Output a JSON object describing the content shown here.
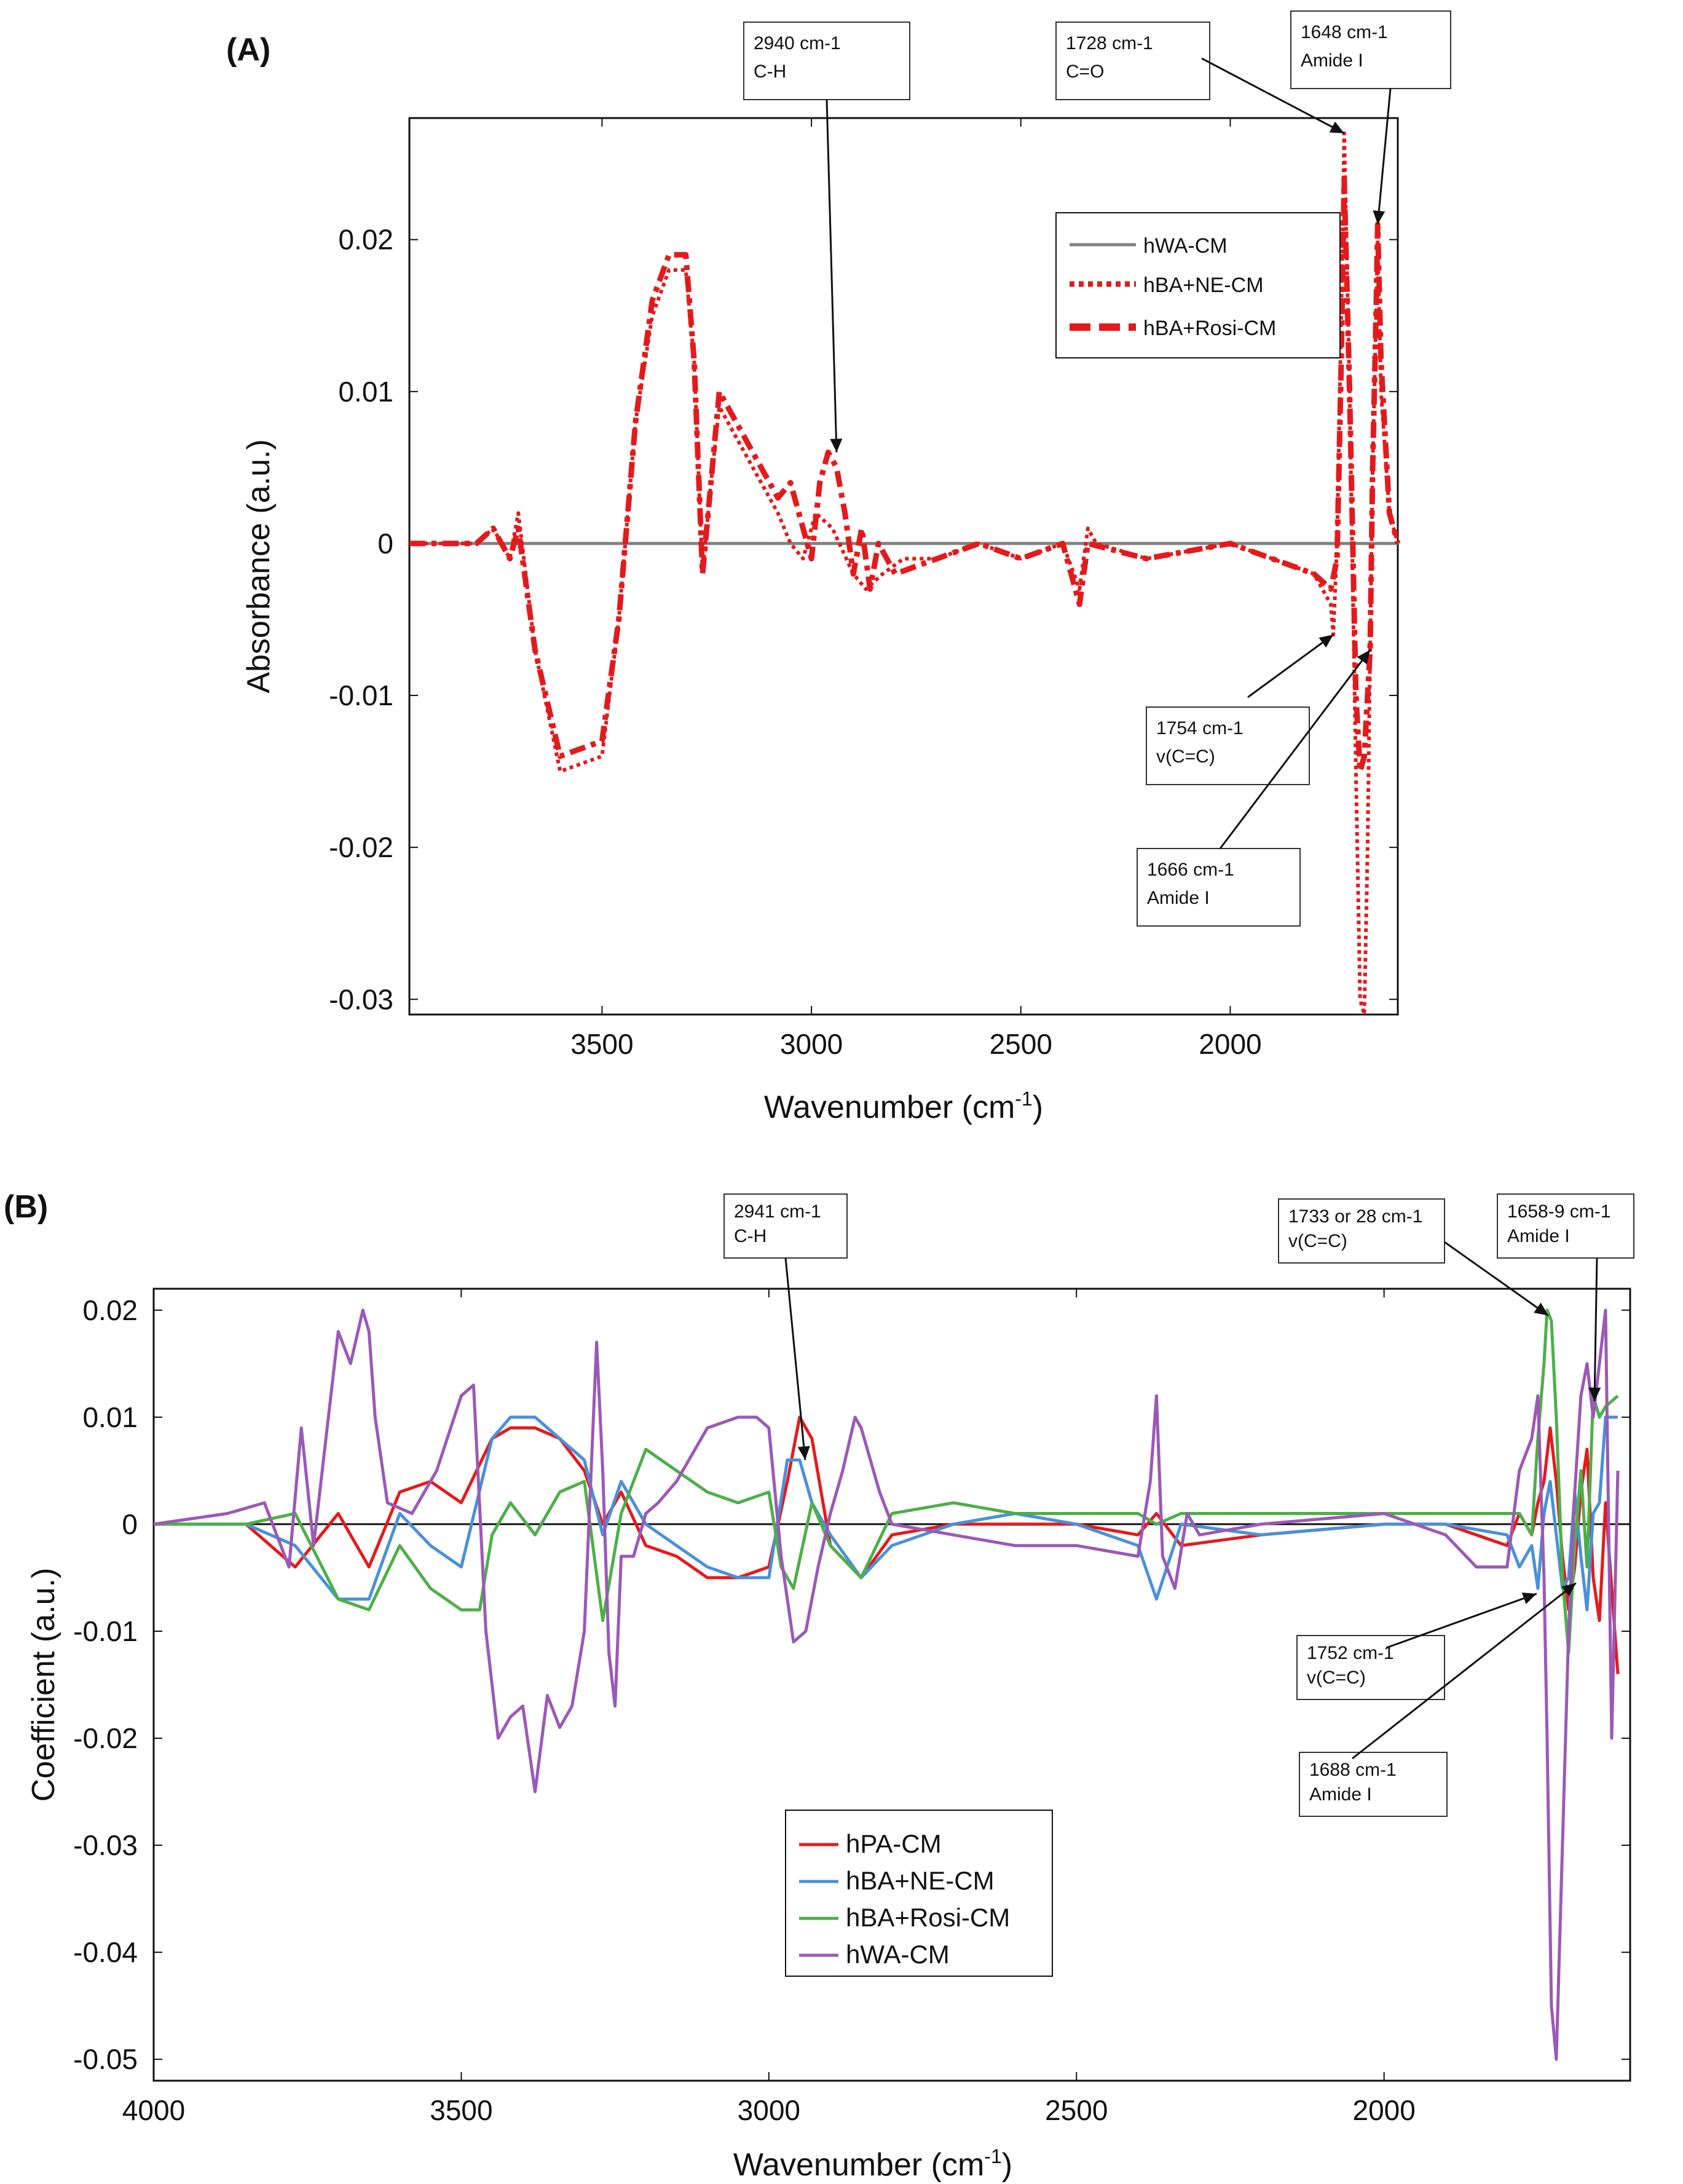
{
  "chart_data": [
    {
      "panel": "(A)",
      "type": "line",
      "xlabel": "Wavenumber (cm-1)",
      "ylabel": "Absorbance (a.u.)",
      "xlim": [
        3960,
        1600
      ],
      "ylim": [
        -0.031,
        0.028
      ],
      "x_reversed": true,
      "xticks": [
        3500,
        3000,
        2500,
        2000
      ],
      "yticks": [
        -0.03,
        -0.02,
        -0.01,
        0,
        0.01,
        0.02
      ],
      "ytick_labels": [
        "-0.03",
        "-0.02",
        "-0.01",
        "0",
        "0.01",
        "0.02"
      ],
      "legend_position": "top-right",
      "series": [
        {
          "name": "hWA-CM",
          "color": "#808080",
          "style": "solid",
          "x": [
            3960,
            1600
          ],
          "y": [
            0,
            0
          ]
        },
        {
          "name": "hBA+NE-CM",
          "color": "#e31a1c",
          "style": "dotted",
          "x": [
            3960,
            3800,
            3760,
            3720,
            3700,
            3660,
            3600,
            3500,
            3460,
            3420,
            3380,
            3340,
            3300,
            3280,
            3260,
            3240,
            3220,
            3180,
            3120,
            3080,
            3050,
            3020,
            2990,
            2950,
            2900,
            2870,
            2830,
            2780,
            2700,
            2600,
            2500,
            2400,
            2360,
            2340,
            2320,
            2200,
            2000,
            1900,
            1800,
            1760,
            1754,
            1745,
            1735,
            1728,
            1715,
            1700,
            1690,
            1680,
            1672,
            1666,
            1660,
            1652,
            1648,
            1640,
            1620,
            1600
          ],
          "y": [
            0,
            0,
            0.001,
            -0.001,
            0.002,
            -0.007,
            -0.015,
            -0.014,
            -0.005,
            0.008,
            0.015,
            0.018,
            0.018,
            0.012,
            -0.002,
            0.004,
            0.009,
            0.007,
            0.004,
            0.002,
            0.0,
            -0.001,
            0.002,
            0.001,
            -0.002,
            -0.003,
            -0.002,
            -0.001,
            -0.001,
            0.0,
            -0.001,
            0.0,
            -0.003,
            0.001,
            0.0,
            -0.001,
            0.0,
            -0.001,
            -0.002,
            -0.004,
            -0.006,
            0.0,
            0.015,
            0.027,
            0.01,
            -0.015,
            -0.03,
            -0.031,
            -0.02,
            -0.007,
            0.005,
            0.015,
            0.02,
            0.01,
            0.002,
            0.0
          ]
        },
        {
          "name": "hBA+Rosi-CM",
          "color": "#e31a1c",
          "style": "dashed",
          "x": [
            3960,
            3800,
            3760,
            3720,
            3700,
            3660,
            3600,
            3500,
            3460,
            3420,
            3380,
            3340,
            3300,
            3280,
            3260,
            3240,
            3220,
            3180,
            3120,
            3080,
            3050,
            3000,
            2980,
            2960,
            2940,
            2920,
            2900,
            2880,
            2860,
            2840,
            2800,
            2700,
            2600,
            2500,
            2400,
            2360,
            2340,
            2200,
            2000,
            1900,
            1800,
            1760,
            1745,
            1735,
            1728,
            1715,
            1700,
            1690,
            1680,
            1672,
            1666,
            1660,
            1652,
            1648,
            1640,
            1620,
            1600
          ],
          "y": [
            0,
            0,
            0.001,
            -0.001,
            0.001,
            -0.007,
            -0.014,
            -0.013,
            -0.005,
            0.008,
            0.016,
            0.019,
            0.019,
            0.012,
            -0.002,
            0.004,
            0.01,
            0.008,
            0.005,
            0.003,
            0.004,
            -0.001,
            0.004,
            0.006,
            0.005,
            0.002,
            -0.002,
            0.001,
            -0.003,
            0.0,
            -0.002,
            -0.001,
            0.0,
            -0.001,
            0.0,
            -0.004,
            0.0,
            -0.001,
            0.0,
            -0.001,
            -0.002,
            -0.003,
            -0.001,
            0.012,
            0.024,
            0.01,
            -0.01,
            -0.015,
            -0.014,
            -0.01,
            -0.007,
            0.005,
            0.015,
            0.021,
            0.012,
            0.002,
            0.0
          ]
        }
      ],
      "annotations": [
        {
          "label": "2940 cm-1",
          "sub": "C-H",
          "x": 2940,
          "y": 0.006
        },
        {
          "label": "1728 cm-1",
          "sub": "C=O",
          "x": 1728,
          "y": 0.027
        },
        {
          "label": "1648 cm-1",
          "sub": "Amide I",
          "x": 1648,
          "y": 0.021
        },
        {
          "label": "1754 cm-1",
          "sub": "v(C=C)",
          "x": 1754,
          "y": -0.006
        },
        {
          "label": "1666 cm-1",
          "sub": "Amide I",
          "x": 1666,
          "y": -0.007
        }
      ]
    },
    {
      "panel": "(B)",
      "type": "line",
      "xlabel": "Wavenumber (cm-1)",
      "ylabel": "Coefficient (a.u.)",
      "xlim": [
        4000,
        1600
      ],
      "ylim": [
        -0.052,
        0.022
      ],
      "x_reversed": true,
      "xticks": [
        4000,
        3500,
        3000,
        2500,
        2000
      ],
      "yticks": [
        -0.05,
        -0.04,
        -0.03,
        -0.02,
        -0.01,
        0,
        0.01,
        0.02
      ],
      "ytick_labels": [
        "-0.05",
        "-0.04",
        "-0.03",
        "-0.02",
        "-0.01",
        "0",
        "0.01",
        "0.02"
      ],
      "legend_position": "bottom-center",
      "series": [
        {
          "name": "hPA-CM",
          "color": "#e41a1c",
          "x": [
            4000,
            3850,
            3770,
            3700,
            3650,
            3600,
            3550,
            3500,
            3450,
            3420,
            3380,
            3340,
            3300,
            3270,
            3240,
            3200,
            3150,
            3100,
            3050,
            3000,
            2970,
            2950,
            2930,
            2900,
            2850,
            2800,
            2700,
            2600,
            2500,
            2400,
            2370,
            2330,
            2200,
            2000,
            1900,
            1800,
            1780,
            1760,
            1750,
            1740,
            1730,
            1720,
            1710,
            1700,
            1690,
            1680,
            1670,
            1660,
            1650,
            1640,
            1620
          ],
          "y": [
            0,
            0,
            -0.004,
            0.001,
            -0.004,
            0.003,
            0.004,
            0.002,
            0.008,
            0.009,
            0.009,
            0.008,
            0.005,
            0.0,
            0.003,
            -0.002,
            -0.003,
            -0.005,
            -0.005,
            -0.004,
            0.004,
            0.01,
            0.008,
            -0.002,
            -0.005,
            -0.001,
            0.0,
            0.0,
            0.0,
            -0.001,
            0.001,
            -0.002,
            -0.001,
            0.0,
            0.0,
            -0.002,
            0.001,
            -0.001,
            0.002,
            0.004,
            0.009,
            0.004,
            -0.003,
            -0.008,
            -0.004,
            0.003,
            0.007,
            -0.005,
            -0.009,
            0.002,
            -0.014
          ]
        },
        {
          "name": "hBA+NE-CM",
          "color": "#4a90d9",
          "x": [
            4000,
            3850,
            3770,
            3700,
            3650,
            3600,
            3550,
            3500,
            3450,
            3420,
            3380,
            3340,
            3300,
            3270,
            3240,
            3200,
            3150,
            3100,
            3050,
            3000,
            2970,
            2950,
            2930,
            2900,
            2850,
            2800,
            2700,
            2600,
            2500,
            2400,
            2370,
            2330,
            2200,
            2000,
            1900,
            1800,
            1780,
            1760,
            1750,
            1740,
            1730,
            1720,
            1710,
            1700,
            1690,
            1680,
            1670,
            1660,
            1650,
            1640,
            1620
          ],
          "y": [
            0,
            0,
            -0.002,
            -0.007,
            -0.007,
            0.001,
            -0.002,
            -0.004,
            0.008,
            0.01,
            0.01,
            0.008,
            0.006,
            -0.001,
            0.004,
            0.0,
            -0.002,
            -0.004,
            -0.005,
            -0.005,
            0.006,
            0.006,
            0.002,
            -0.001,
            -0.005,
            -0.002,
            0.0,
            0.001,
            0.0,
            -0.002,
            -0.007,
            0.0,
            -0.001,
            0.0,
            0.0,
            -0.001,
            -0.004,
            -0.002,
            -0.006,
            0.001,
            0.004,
            -0.001,
            -0.006,
            -0.005,
            0.003,
            -0.003,
            -0.008,
            0.001,
            0.002,
            0.01,
            0.01
          ]
        },
        {
          "name": "hBA+Rosi-CM",
          "color": "#4daf4a",
          "x": [
            4000,
            3850,
            3770,
            3700,
            3650,
            3600,
            3550,
            3500,
            3470,
            3450,
            3420,
            3380,
            3340,
            3300,
            3270,
            3240,
            3200,
            3150,
            3100,
            3050,
            3000,
            2980,
            2960,
            2930,
            2900,
            2850,
            2800,
            2700,
            2600,
            2500,
            2400,
            2370,
            2330,
            2200,
            2000,
            1900,
            1800,
            1780,
            1760,
            1750,
            1740,
            1735,
            1728,
            1720,
            1710,
            1700,
            1690,
            1680,
            1670,
            1660,
            1650,
            1640,
            1620
          ],
          "y": [
            0,
            0,
            0.001,
            -0.007,
            -0.008,
            -0.002,
            -0.006,
            -0.008,
            -0.008,
            -0.001,
            0.002,
            -0.001,
            0.003,
            0.004,
            -0.009,
            0.001,
            0.007,
            0.005,
            0.003,
            0.002,
            0.003,
            -0.004,
            -0.006,
            0.002,
            -0.002,
            -0.005,
            0.001,
            0.002,
            0.001,
            0.001,
            0.001,
            0.0,
            0.001,
            0.001,
            0.001,
            0.001,
            0.001,
            0.001,
            -0.001,
            0.008,
            0.015,
            0.02,
            0.019,
            0.01,
            -0.005,
            -0.012,
            -0.002,
            0.005,
            -0.004,
            0.012,
            0.01,
            0.011,
            0.012
          ]
        },
        {
          "name": "hWA-CM",
          "color": "#9b59b6",
          "x": [
            4000,
            3880,
            3820,
            3780,
            3760,
            3740,
            3700,
            3680,
            3660,
            3650,
            3640,
            3620,
            3580,
            3540,
            3500,
            3480,
            3460,
            3440,
            3420,
            3400,
            3380,
            3360,
            3340,
            3320,
            3300,
            3280,
            3270,
            3260,
            3250,
            3240,
            3220,
            3200,
            3180,
            3150,
            3100,
            3050,
            3020,
            3000,
            2980,
            2960,
            2940,
            2920,
            2900,
            2880,
            2860,
            2850,
            2820,
            2800,
            2700,
            2600,
            2500,
            2400,
            2380,
            2370,
            2360,
            2340,
            2320,
            2300,
            2200,
            2000,
            1900,
            1850,
            1800,
            1780,
            1760,
            1750,
            1740,
            1735,
            1728,
            1720,
            1710,
            1700,
            1690,
            1680,
            1670,
            1660,
            1650,
            1640,
            1630,
            1620
          ],
          "y": [
            0,
            0.001,
            0.002,
            -0.004,
            0.009,
            -0.002,
            0.018,
            0.015,
            0.02,
            0.018,
            0.01,
            0.002,
            0.001,
            0.005,
            0.012,
            0.013,
            -0.01,
            -0.02,
            -0.018,
            -0.017,
            -0.025,
            -0.016,
            -0.019,
            -0.017,
            -0.01,
            0.017,
            0.005,
            -0.012,
            -0.017,
            -0.003,
            -0.003,
            0.001,
            0.002,
            0.004,
            0.009,
            0.01,
            0.01,
            0.009,
            -0.003,
            -0.011,
            -0.01,
            -0.004,
            0.001,
            0.005,
            0.01,
            0.009,
            0.003,
            0.0,
            -0.001,
            -0.002,
            -0.002,
            -0.003,
            0.004,
            0.012,
            -0.003,
            -0.006,
            0.001,
            -0.001,
            0.0,
            0.001,
            -0.001,
            -0.004,
            -0.004,
            0.005,
            0.008,
            0.012,
            -0.005,
            -0.02,
            -0.045,
            -0.05,
            -0.03,
            -0.01,
            0.003,
            0.012,
            0.015,
            0.01,
            0.015,
            0.02,
            -0.02,
            0.005
          ]
        }
      ],
      "annotations": [
        {
          "label": "2941 cm-1",
          "sub": "C-H",
          "x": 2941,
          "y": 0.006
        },
        {
          "label": "1733 or 28 cm-1",
          "sub": "v(C=C)",
          "x": 1733,
          "y": 0.0195
        },
        {
          "label": "1658-9  cm-1",
          "sub": "Amide I",
          "x": 1658,
          "y": 0.0115
        },
        {
          "label": "1752 cm-1",
          "sub": "v(C=C)",
          "x": 1752,
          "y": -0.0065
        },
        {
          "label": "1688 cm-1",
          "sub": "Amide I",
          "x": 1688,
          "y": -0.0055
        }
      ]
    }
  ]
}
